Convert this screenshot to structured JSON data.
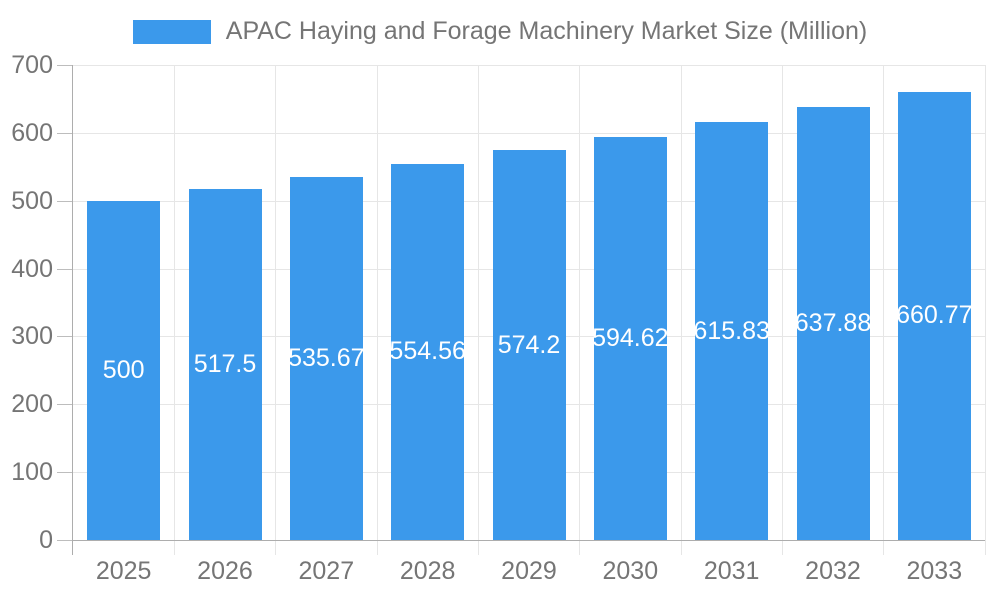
{
  "chart_data": {
    "type": "bar",
    "title": "APAC Haying and Forage Machinery Market Size (Million)",
    "categories": [
      "2025",
      "2026",
      "2027",
      "2028",
      "2029",
      "2030",
      "2031",
      "2032",
      "2033"
    ],
    "values": [
      500,
      517.5,
      535.67,
      554.56,
      574.2,
      594.62,
      615.83,
      637.88,
      660.77
    ],
    "value_labels": [
      "500",
      "517.5",
      "535.67",
      "554.56",
      "574.2",
      "594.62",
      "615.83",
      "637.88",
      "660.77"
    ],
    "xlabel": "",
    "ylabel": "",
    "ylim": [
      0,
      700
    ],
    "yticks": [
      0,
      100,
      200,
      300,
      400,
      500,
      600,
      700
    ],
    "grid": true,
    "legend_position": "top",
    "bar_color": "#3B99EB",
    "bar_label_color": "#FFFFFF",
    "axis_text_color": "#757575",
    "axis_line_color": "#ADADAD",
    "tick_color": "#BDBDBD",
    "grid_color": "#E6E6E6",
    "background": "#FFFFFF"
  }
}
